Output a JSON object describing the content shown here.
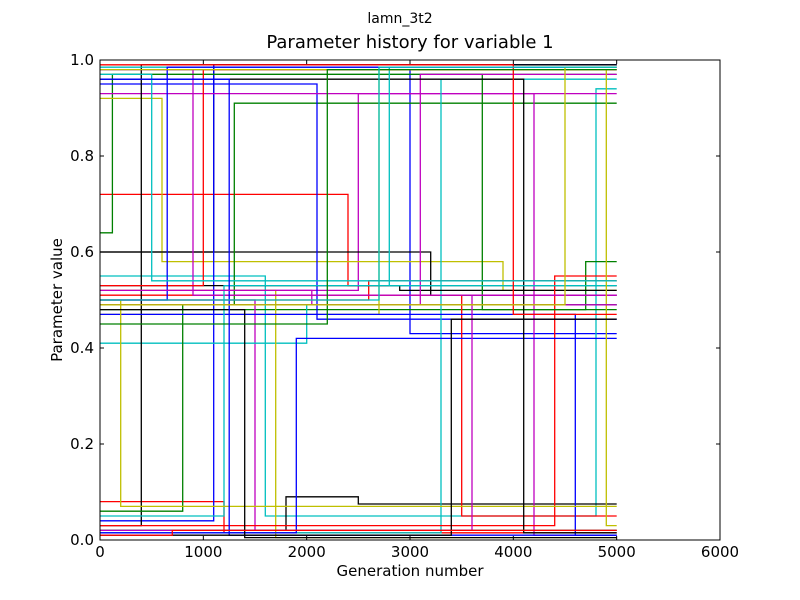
{
  "figure": {
    "suptitle": "lamn_3t2"
  },
  "chart_data": {
    "type": "line",
    "title": "Parameter history for variable 1",
    "xlabel": "Generation number",
    "ylabel": "Parameter value",
    "xlim": [
      0,
      6000
    ],
    "ylim": [
      0.0,
      1.0
    ],
    "xticks": [
      0,
      1000,
      2000,
      3000,
      4000,
      5000,
      6000
    ],
    "xtick_labels": [
      "0",
      "1000",
      "2000",
      "3000",
      "4000",
      "5000",
      "6000"
    ],
    "yticks": [
      0.0,
      0.2,
      0.4,
      0.6,
      0.8,
      1.0
    ],
    "ytick_labels": [
      "0.0",
      "0.2",
      "0.4",
      "0.6",
      "0.8",
      "1.0"
    ],
    "grid": false,
    "legend": "none",
    "colors": [
      "#0000ff",
      "#008000",
      "#ff0000",
      "#00bfbf",
      "#bf00bf",
      "#bfbf00",
      "#000000"
    ],
    "series": [
      {
        "color": "#000000",
        "x": [
          0,
          1100,
          1100,
          5000
        ],
        "y": [
          0.6,
          0.6,
          0.99,
          0.99
        ]
      },
      {
        "color": "#ff0000",
        "x": [
          0,
          2400,
          2400,
          5000
        ],
        "y": [
          0.72,
          0.72,
          0.53,
          0.53
        ]
      },
      {
        "color": "#008000",
        "x": [
          0,
          120,
          120,
          5000
        ],
        "y": [
          0.64,
          0.64,
          0.97,
          0.97
        ]
      },
      {
        "color": "#0000ff",
        "x": [
          0,
          3000,
          3000,
          5000
        ],
        "y": [
          0.98,
          0.98,
          0.43,
          0.43
        ]
      },
      {
        "color": "#00bfbf",
        "x": [
          0,
          1600,
          1600,
          4800,
          4800,
          5000
        ],
        "y": [
          0.55,
          0.55,
          0.05,
          0.05,
          0.94,
          0.94
        ]
      },
      {
        "color": "#bf00bf",
        "x": [
          0,
          2500,
          2500,
          5000
        ],
        "y": [
          0.52,
          0.52,
          0.93,
          0.93
        ]
      },
      {
        "color": "#bfbf00",
        "x": [
          0,
          600,
          600,
          3900,
          3900,
          5000
        ],
        "y": [
          0.92,
          0.92,
          0.58,
          0.58,
          0.52,
          0.52
        ]
      },
      {
        "color": "#000000",
        "x": [
          0,
          3200,
          3200,
          5000
        ],
        "y": [
          0.6,
          0.6,
          0.51,
          0.51
        ]
      },
      {
        "color": "#ff0000",
        "x": [
          0,
          1200,
          1200,
          5000
        ],
        "y": [
          0.08,
          0.08,
          0.015,
          0.015
        ]
      },
      {
        "color": "#008000",
        "x": [
          0,
          4700,
          4700,
          5000
        ],
        "y": [
          0.48,
          0.48,
          0.58,
          0.58
        ]
      },
      {
        "color": "#0000ff",
        "x": [
          0,
          1100,
          1100,
          5000
        ],
        "y": [
          0.04,
          0.04,
          0.99,
          0.99
        ]
      },
      {
        "color": "#000000",
        "x": [
          0,
          1800,
          1800,
          2500,
          2500,
          5000
        ],
        "y": [
          0.02,
          0.02,
          0.09,
          0.09,
          0.075,
          0.075
        ]
      },
      {
        "color": "#bfbf00",
        "x": [
          0,
          2700,
          2700,
          5000
        ],
        "y": [
          0.47,
          0.47,
          0.98,
          0.98
        ]
      },
      {
        "color": "#bf00bf",
        "x": [
          0,
          1500,
          1500,
          5000
        ],
        "y": [
          0.5,
          0.5,
          0.02,
          0.02
        ]
      },
      {
        "color": "#00bfbf",
        "x": [
          0,
          2000,
          2000,
          5000
        ],
        "y": [
          0.41,
          0.41,
          0.49,
          0.49
        ]
      },
      {
        "color": "#008000",
        "x": [
          0,
          1300,
          1300,
          5000
        ],
        "y": [
          0.49,
          0.49,
          0.91,
          0.91
        ]
      },
      {
        "color": "#ff0000",
        "x": [
          0,
          3500,
          3500,
          5000
        ],
        "y": [
          0.51,
          0.51,
          0.05,
          0.05
        ]
      },
      {
        "color": "#0000ff",
        "x": [
          0,
          2100,
          2100,
          5000
        ],
        "y": [
          0.95,
          0.95,
          0.46,
          0.46
        ]
      },
      {
        "color": "#bf00bf",
        "x": [
          0,
          4200,
          4200,
          5000
        ],
        "y": [
          0.93,
          0.93,
          0.01,
          0.01
        ]
      },
      {
        "color": "#000000",
        "x": [
          0,
          400,
          400,
          5000
        ],
        "y": [
          0.03,
          0.03,
          0.99,
          0.99
        ]
      },
      {
        "color": "#00bfbf",
        "x": [
          0,
          3300,
          3300,
          5000
        ],
        "y": [
          0.015,
          0.015,
          0.96,
          0.96
        ]
      },
      {
        "color": "#bfbf00",
        "x": [
          0,
          1700,
          1700,
          5000
        ],
        "y": [
          0.52,
          0.52,
          0.005,
          0.005
        ]
      },
      {
        "color": "#ff0000",
        "x": [
          0,
          2600,
          2600,
          5000
        ],
        "y": [
          0.5,
          0.5,
          0.54,
          0.54
        ]
      },
      {
        "color": "#008000",
        "x": [
          0,
          800,
          800,
          5000
        ],
        "y": [
          0.06,
          0.06,
          0.49,
          0.49
        ]
      },
      {
        "color": "#0000ff",
        "x": [
          0,
          4600,
          4600,
          5000
        ],
        "y": [
          0.47,
          0.47,
          0.01,
          0.01
        ]
      },
      {
        "color": "#bf00bf",
        "x": [
          0,
          900,
          900,
          5000
        ],
        "y": [
          0.98,
          0.98,
          0.51,
          0.51
        ]
      },
      {
        "color": "#000000",
        "x": [
          0,
          2900,
          2900,
          5000
        ],
        "y": [
          0.53,
          0.53,
          0.52,
          0.52
        ]
      },
      {
        "color": "#00bfbf",
        "x": [
          0,
          1200,
          1200,
          5000
        ],
        "y": [
          0.05,
          0.05,
          0.53,
          0.53
        ]
      },
      {
        "color": "#ff0000",
        "x": [
          0,
          4400,
          4400,
          5000
        ],
        "y": [
          0.03,
          0.03,
          0.55,
          0.55
        ]
      },
      {
        "color": "#008000",
        "x": [
          0,
          3700,
          3700,
          5000
        ],
        "y": [
          0.97,
          0.97,
          0.48,
          0.48
        ]
      },
      {
        "color": "#bfbf00",
        "x": [
          0,
          200,
          200,
          5000
        ],
        "y": [
          0.5,
          0.5,
          0.07,
          0.07
        ]
      },
      {
        "color": "#0000ff",
        "x": [
          0,
          1900,
          1900,
          5000
        ],
        "y": [
          0.015,
          0.015,
          0.42,
          0.42
        ]
      },
      {
        "color": "#bf00bf",
        "x": [
          0,
          3100,
          3100,
          5000
        ],
        "y": [
          0.49,
          0.49,
          0.97,
          0.97
        ]
      },
      {
        "color": "#000000",
        "x": [
          0,
          4100,
          4100,
          5000
        ],
        "y": [
          0.96,
          0.96,
          0.015,
          0.015
        ]
      },
      {
        "color": "#00bfbf",
        "x": [
          0,
          2800,
          2800,
          5000
        ],
        "y": [
          0.985,
          0.985,
          0.53,
          0.53
        ]
      },
      {
        "color": "#ff0000",
        "x": [
          0,
          1000,
          1000,
          5000
        ],
        "y": [
          0.53,
          0.53,
          0.98,
          0.98
        ]
      },
      {
        "color": "#008000",
        "x": [
          0,
          2300,
          2300,
          5000
        ],
        "y": [
          0.02,
          0.02,
          0.02,
          0.02
        ]
      },
      {
        "color": "#0000ff",
        "x": [
          0,
          650,
          650,
          5000
        ],
        "y": [
          0.5,
          0.5,
          0.985,
          0.985
        ]
      },
      {
        "color": "#bf00bf",
        "x": [
          0,
          3600,
          3600,
          5000
        ],
        "y": [
          0.02,
          0.02,
          0.51,
          0.51
        ]
      },
      {
        "color": "#bfbf00",
        "x": [
          0,
          4900,
          4900,
          5000
        ],
        "y": [
          0.98,
          0.98,
          0.03,
          0.03
        ]
      },
      {
        "color": "#000000",
        "x": [
          0,
          1400,
          1400,
          5000
        ],
        "y": [
          0.48,
          0.48,
          0.005,
          0.005
        ]
      },
      {
        "color": "#ff0000",
        "x": [
          0,
          4000,
          4000,
          5000
        ],
        "y": [
          0.99,
          0.99,
          0.47,
          0.47
        ]
      },
      {
        "color": "#00bfbf",
        "x": [
          0,
          500,
          500,
          5000
        ],
        "y": [
          0.97,
          0.97,
          0.54,
          0.54
        ]
      },
      {
        "color": "#008000",
        "x": [
          0,
          2200,
          2200,
          5000
        ],
        "y": [
          0.45,
          0.45,
          0.98,
          0.98
        ]
      },
      {
        "color": "#0000ff",
        "x": [
          0,
          1250,
          1250,
          5000
        ],
        "y": [
          0.96,
          0.96,
          0.01,
          0.01
        ]
      },
      {
        "color": "#bf00bf",
        "x": [
          0,
          2050,
          2050,
          5000
        ],
        "y": [
          0.52,
          0.52,
          0.49,
          0.49
        ]
      },
      {
        "color": "#000000",
        "x": [
          0,
          3400,
          3400,
          5000
        ],
        "y": [
          0.01,
          0.01,
          0.46,
          0.46
        ]
      },
      {
        "color": "#bfbf00",
        "x": [
          0,
          4500,
          4500,
          5000
        ],
        "y": [
          0.49,
          0.49,
          0.985,
          0.985
        ]
      },
      {
        "color": "#ff0000",
        "x": [
          0,
          700,
          700,
          5000
        ],
        "y": [
          0.01,
          0.01,
          0.02,
          0.02
        ]
      },
      {
        "color": "#00bfbf",
        "x": [
          0,
          2700,
          2700,
          5000
        ],
        "y": [
          0.5,
          0.5,
          0.985,
          0.985
        ]
      }
    ]
  }
}
